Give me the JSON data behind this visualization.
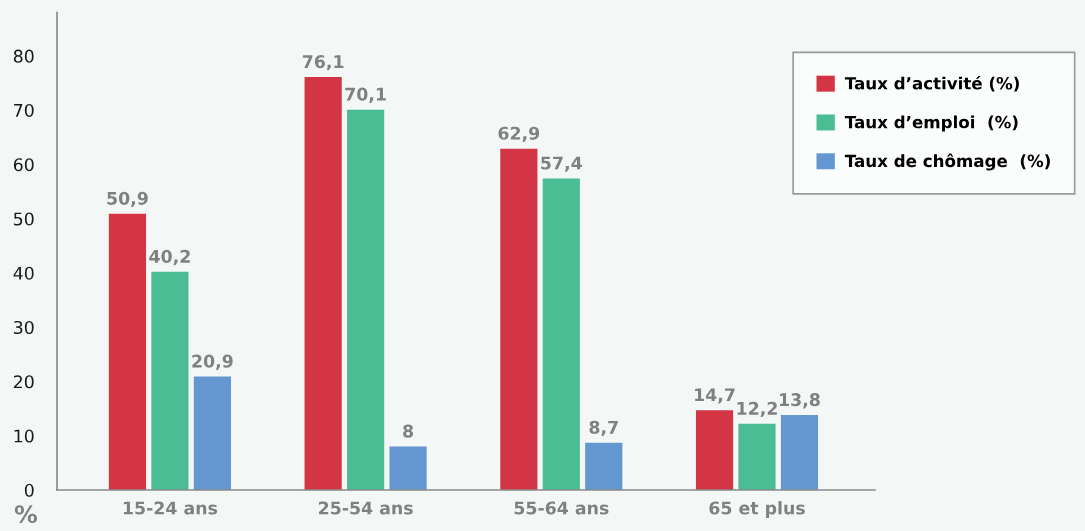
{
  "chart_data": {
    "type": "bar",
    "ylabel": "%",
    "categories": [
      "15-24 ans",
      "25-54 ans",
      "55-64 ans",
      "65 et plus"
    ],
    "series": [
      {
        "name": "Taux d’activité (%)",
        "color": "#d43545",
        "values": [
          50.9,
          76.1,
          62.9,
          14.7
        ],
        "value_labels": [
          "50,9",
          "76,1",
          "62,9",
          "14,7"
        ]
      },
      {
        "name": "Taux d’emploi  (%)",
        "color": "#4bbd95",
        "values": [
          40.2,
          70.1,
          57.4,
          12.2
        ],
        "value_labels": [
          "40,2",
          "70,1",
          "57,4",
          "12,2"
        ]
      },
      {
        "name": "Taux de chômage  (%)",
        "color": "#6497cf",
        "values": [
          20.9,
          8,
          8.7,
          13.8
        ],
        "value_labels": [
          "20,9",
          "8",
          "8,7",
          "13,8"
        ]
      }
    ],
    "ylim": [
      0,
      88
    ],
    "yticks": [
      0,
      10,
      20,
      30,
      40,
      50,
      60,
      70,
      80
    ],
    "grid": false,
    "legend": "top right"
  }
}
